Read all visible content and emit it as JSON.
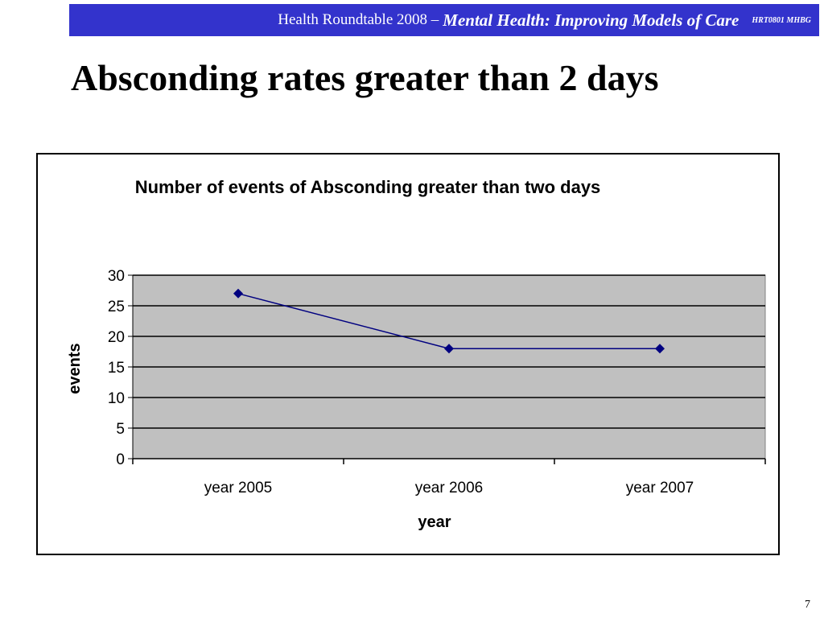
{
  "banner": {
    "prefix": "Health Roundtable  2008 –",
    "emphasis": "Mental Health:  Improving Models of Care",
    "code": "HRT0801 MHBG",
    "background": "#3333cc"
  },
  "slide": {
    "title": "Absconding rates greater than 2 days",
    "page_number": "7"
  },
  "chart_data": {
    "type": "line",
    "title": "Number of events of  Absconding greater than two days",
    "xlabel": "year",
    "ylabel": "events",
    "categories": [
      "year 2005",
      "year 2006",
      "year 2007"
    ],
    "series": [
      {
        "values": [
          27,
          18,
          18
        ],
        "color": "#000080",
        "marker": "diamond"
      }
    ],
    "ylim": [
      0,
      30
    ],
    "yticks": [
      0,
      5,
      10,
      15,
      20,
      25,
      30
    ],
    "grid": true,
    "legend": "none",
    "plot_background": "#c0c0c0"
  }
}
